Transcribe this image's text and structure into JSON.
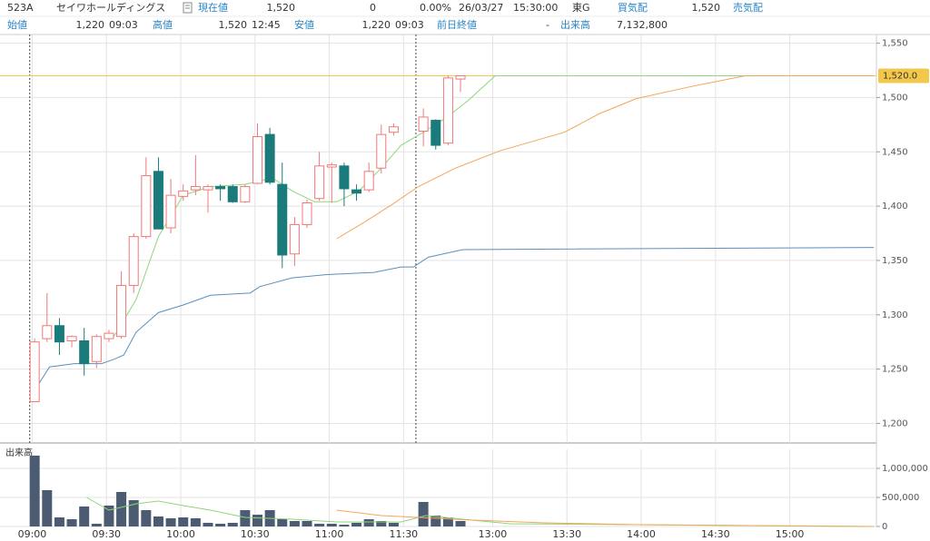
{
  "header": {
    "row1": [
      "523A",
      "セイワホールディングス",
      "現在値",
      "1,520",
      "0",
      "0.00%",
      "26/03/27",
      "15:30:00",
      "東G",
      "買気配",
      "1,520",
      "売気配"
    ],
    "row2": [
      "始値",
      "1,220",
      "09:03",
      "高値",
      "1,520",
      "12:45",
      "安値",
      "1,220",
      "09:03",
      "前日終値",
      "-",
      "出来高",
      "7,132,800"
    ]
  },
  "chart_data": [
    {
      "type": "candlestick",
      "x": [
        1,
        6,
        11,
        16,
        21,
        26,
        31,
        36,
        41,
        46,
        51,
        56,
        61,
        66,
        71,
        76,
        81,
        86,
        91,
        96,
        101,
        106,
        111,
        116,
        121,
        126,
        131,
        136,
        141,
        146,
        158,
        163,
        168,
        173
      ],
      "open": [
        1220,
        1278,
        1290,
        1276,
        1276,
        1257,
        1278,
        1280,
        1327,
        1372,
        1432,
        1380,
        1409,
        1415,
        1415,
        1418,
        1418,
        1404,
        1421,
        1466,
        1420,
        1356,
        1383,
        1407,
        1436,
        1437,
        1415,
        1415,
        1435,
        1468,
        1469,
        1479,
        1458,
        1517
      ],
      "high": [
        1278,
        1320,
        1297,
        1281,
        1288,
        1282,
        1286,
        1340,
        1375,
        1445,
        1445,
        1425,
        1420,
        1447,
        1420,
        1420,
        1420,
        1420,
        1476,
        1472,
        1440,
        1390,
        1406,
        1450,
        1440,
        1440,
        1420,
        1440,
        1475,
        1476,
        1490,
        1480,
        1520,
        1520
      ],
      "low": [
        1220,
        1275,
        1263,
        1270,
        1244,
        1251,
        1275,
        1278,
        1320,
        1370,
        1379,
        1375,
        1405,
        1410,
        1394,
        1405,
        1403,
        1403,
        1420,
        1420,
        1343,
        1345,
        1380,
        1405,
        1403,
        1400,
        1405,
        1413,
        1430,
        1465,
        1455,
        1452,
        1456,
        1505
      ],
      "close": [
        1275,
        1290,
        1275,
        1280,
        1255,
        1280,
        1283,
        1327,
        1372,
        1428,
        1379,
        1410,
        1414,
        1418,
        1418,
        1416,
        1404,
        1418,
        1464,
        1422,
        1355,
        1383,
        1403,
        1437,
        1438,
        1416,
        1412,
        1432,
        1466,
        1473,
        1482,
        1456,
        1518,
        1520
      ],
      "up_color": "#f07878",
      "down_color": "#1b7b7b",
      "xlim": [
        -13,
        341
      ],
      "ylim": [
        1182,
        1558
      ],
      "xticks": [
        0,
        30,
        60,
        90,
        120,
        150,
        186,
        216,
        246,
        276,
        306
      ],
      "yticks": [
        {
          "value": 1200,
          "label": "1,200"
        },
        {
          "value": 1250,
          "label": "1,250"
        },
        {
          "value": 1300,
          "label": "1,300"
        },
        {
          "value": 1350,
          "label": "1,350"
        },
        {
          "value": 1400,
          "label": "1,400"
        },
        {
          "value": 1450,
          "label": "1,450"
        },
        {
          "value": 1500,
          "label": "1,500"
        },
        {
          "value": 1550,
          "label": "1,550"
        }
      ],
      "grid": true,
      "current_price": {
        "value": 1520,
        "label": "1,520.0"
      },
      "current_price_color": "#f2c84b",
      "lines": [
        {
          "color": "#5b8fb9",
          "x": [
            2,
            7,
            17,
            28,
            33,
            37,
            42,
            51,
            61,
            72,
            88,
            92,
            105,
            119,
            138,
            149,
            154,
            160,
            174,
            340
          ],
          "values": [
            1234,
            1252,
            1255,
            1255,
            1259,
            1263,
            1284,
            1302,
            1309,
            1318,
            1320,
            1326,
            1334,
            1337,
            1339,
            1344,
            1344,
            1353,
            1360,
            1362
          ]
        },
        {
          "color": "#8fd67a",
          "x": [
            33,
            42,
            51,
            61,
            72,
            86,
            97,
            105,
            114,
            123,
            132,
            141,
            149,
            158,
            167,
            176,
            187,
            340
          ],
          "values": [
            1280,
            1314,
            1372,
            1410,
            1418,
            1420,
            1426,
            1414,
            1404,
            1404,
            1414,
            1435,
            1456,
            1468,
            1481,
            1497,
            1520,
            1520
          ]
        },
        {
          "color": "#f5a55a",
          "x": [
            123,
            134,
            145,
            156,
            171,
            189,
            215,
            229,
            244,
            266,
            288,
            340
          ],
          "values": [
            1370,
            1385,
            1401,
            1418,
            1435,
            1451,
            1468,
            1485,
            1499,
            1510,
            1520,
            1520
          ]
        }
      ]
    },
    {
      "type": "bar",
      "title": "出来高",
      "x": [
        1,
        6,
        11,
        16,
        21,
        26,
        31,
        36,
        41,
        46,
        51,
        56,
        61,
        66,
        71,
        76,
        81,
        86,
        91,
        96,
        101,
        106,
        111,
        116,
        121,
        126,
        131,
        136,
        141,
        146,
        158,
        163,
        168,
        173
      ],
      "values": [
        1220000,
        625000,
        156000,
        125000,
        344000,
        47000,
        360000,
        594000,
        453000,
        281000,
        172000,
        141000,
        156000,
        141000,
        63000,
        47000,
        63000,
        281000,
        203000,
        281000,
        125000,
        94000,
        94000,
        47000,
        47000,
        31000,
        63000,
        125000,
        94000,
        63000,
        422000,
        188000,
        156000,
        94000
      ],
      "color": "#4b5b72",
      "xlim": [
        -13,
        341
      ],
      "ylim": [
        0,
        1328000
      ],
      "xticks": [
        {
          "value": 0,
          "label": "09:00"
        },
        {
          "value": 30,
          "label": "09:30"
        },
        {
          "value": 60,
          "label": "10:00"
        },
        {
          "value": 90,
          "label": "10:30"
        },
        {
          "value": 120,
          "label": "11:00"
        },
        {
          "value": 150,
          "label": "11:30"
        },
        {
          "value": 186,
          "label": "13:00"
        },
        {
          "value": 216,
          "label": "13:30"
        },
        {
          "value": 246,
          "label": "14:00"
        },
        {
          "value": 276,
          "label": "14:30"
        },
        {
          "value": 306,
          "label": "15:00"
        }
      ],
      "yticks": [
        0,
        {
          "value": 500000,
          "label": "500,000"
        },
        {
          "value": 1000000,
          "label": "1,000,000"
        }
      ],
      "grid": true,
      "lines": [
        {
          "color": "#8fd67a",
          "x": [
            22,
            31,
            42,
            51,
            61,
            72,
            86,
            105,
            123,
            149,
            159,
            174,
            193,
            340
          ],
          "values": [
            500000,
            281000,
            390000,
            438000,
            359000,
            281000,
            156000,
            125000,
            78000,
            78000,
            188000,
            125000,
            47000,
            0
          ]
        },
        {
          "color": "#f5a55a",
          "x": [
            123,
            141,
            156,
            178,
            207,
            244,
            340
          ],
          "values": [
            281000,
            188000,
            156000,
            109000,
            63000,
            31000,
            0
          ]
        }
      ]
    }
  ]
}
